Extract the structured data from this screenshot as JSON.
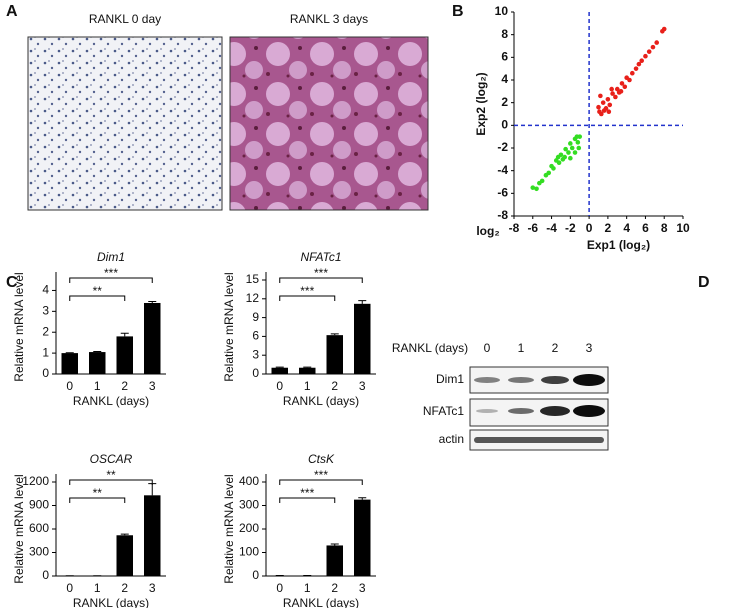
{
  "panel_labels": [
    "A",
    "B",
    "C",
    "D"
  ],
  "panel_a": {
    "images": [
      "RANKL 0 day",
      "RANKL 3 days"
    ]
  },
  "panel_d": {
    "header": "RANKL (days)",
    "lanes": [
      "0",
      "1",
      "2",
      "3"
    ],
    "rows": [
      "Dim1",
      "NFATc1",
      "actin"
    ]
  },
  "chart_data": [
    {
      "type": "scatter",
      "x_label": "Exp1 (log₂)",
      "y_label": "Exp2 (log₂)",
      "corner_label": "log₂",
      "xlim": [
        -8,
        10
      ],
      "ylim": [
        -8,
        10
      ],
      "xticks": [
        -8,
        -6,
        -4,
        -2,
        0,
        2,
        4,
        6,
        8,
        10
      ],
      "yticks": [
        -8,
        -6,
        -4,
        -2,
        0,
        2,
        4,
        6,
        8,
        10
      ],
      "reference_lines": {
        "x": 0,
        "y": 0,
        "color": "#2233cc"
      },
      "series": [
        {
          "color": "#e8201a",
          "x": [
            1.1,
            1.3,
            1.5,
            1.2,
            1.8,
            2,
            2.2,
            2.5,
            2.8,
            3,
            3.2,
            3.5,
            3.8,
            4,
            4.3,
            4.6,
            5,
            5.3,
            5.6,
            6,
            6.4,
            6.8,
            7.2,
            7.8,
            8,
            1.0,
            1.6,
            2.4,
            3.4,
            2.1
          ],
          "y": [
            1.2,
            1.0,
            2.0,
            2.6,
            1.5,
            2.3,
            1.8,
            2.8,
            2.5,
            3.2,
            2.9,
            3.7,
            3.4,
            4.2,
            4.0,
            4.6,
            5.0,
            5.4,
            5.7,
            6.1,
            6.5,
            6.9,
            7.3,
            8.3,
            8.5,
            1.6,
            1.3,
            3.2,
            3.0,
            1.2
          ]
        },
        {
          "color": "#33dd22",
          "x": [
            -1,
            -1.2,
            -1.5,
            -1.8,
            -2,
            -2.2,
            -2.5,
            -2.8,
            -3,
            -3.2,
            -3.5,
            -3.8,
            -4,
            -4.3,
            -4.6,
            -5,
            -5.3,
            -5.6,
            -6,
            -1.1,
            -1.5,
            -2,
            -1.3,
            -2.6,
            -3.3
          ],
          "y": [
            -1,
            -1.5,
            -1.2,
            -2,
            -1.6,
            -2.4,
            -2.1,
            -3,
            -2.6,
            -3.3,
            -3.1,
            -3.8,
            -3.6,
            -4.2,
            -4.4,
            -4.9,
            -5.1,
            -5.6,
            -5.5,
            -2,
            -2.4,
            -2.9,
            -1.0,
            -2.8,
            -2.8
          ]
        }
      ]
    },
    {
      "type": "bar",
      "title": "Dim1",
      "x_label": "RANKL (days)",
      "y_label": "Relative mRNA level",
      "categories": [
        "0",
        "1",
        "2",
        "3"
      ],
      "values": [
        1,
        1.05,
        1.8,
        3.4
      ],
      "errors": [
        0.02,
        0.03,
        0.15,
        0.07
      ],
      "ylim": [
        0,
        4.5
      ],
      "yticks": [
        0,
        1,
        2,
        3,
        4
      ],
      "color": "#000000",
      "annotations": [
        {
          "label": "**",
          "categories": [
            "0",
            "2"
          ]
        },
        {
          "label": "***",
          "categories": [
            "0",
            "3"
          ]
        }
      ]
    },
    {
      "type": "bar",
      "title": "NFATc1",
      "x_label": "RANKL (days)",
      "y_label": "Relative mRNA level",
      "categories": [
        "0",
        "1",
        "2",
        "3"
      ],
      "values": [
        1,
        1,
        6.2,
        11.2
      ],
      "errors": [
        0.1,
        0.1,
        0.2,
        0.5
      ],
      "ylim": [
        0,
        15
      ],
      "yticks": [
        0,
        3,
        6,
        9,
        12,
        15
      ],
      "color": "#000000",
      "annotations": [
        {
          "label": "***",
          "categories": [
            "0",
            "2"
          ]
        },
        {
          "label": "***",
          "categories": [
            "0",
            "3"
          ]
        }
      ]
    },
    {
      "type": "bar",
      "title": "OSCAR",
      "x_label": "RANKL (days)",
      "y_label": "Relative mRNA level",
      "categories": [
        "0",
        "1",
        "2",
        "3"
      ],
      "values": [
        2,
        2,
        520,
        1030
      ],
      "errors": [
        1,
        1,
        15,
        150
      ],
      "ylim": [
        0,
        1200
      ],
      "yticks": [
        0,
        300,
        600,
        900,
        1200
      ],
      "color": "#000000",
      "annotations": [
        {
          "label": "**",
          "categories": [
            "0",
            "2"
          ]
        },
        {
          "label": "**",
          "categories": [
            "0",
            "3"
          ]
        }
      ]
    },
    {
      "type": "bar",
      "title": "CtsK",
      "x_label": "RANKL (days)",
      "y_label": "Relative mRNA level",
      "categories": [
        "0",
        "1",
        "2",
        "3"
      ],
      "values": [
        1,
        1,
        130,
        325
      ],
      "errors": [
        1,
        1,
        6,
        8
      ],
      "ylim": [
        0,
        400
      ],
      "yticks": [
        0,
        100,
        200,
        300,
        400
      ],
      "color": "#000000",
      "annotations": [
        {
          "label": "***",
          "categories": [
            "0",
            "2"
          ]
        },
        {
          "label": "***",
          "categories": [
            "0",
            "3"
          ]
        }
      ]
    }
  ]
}
